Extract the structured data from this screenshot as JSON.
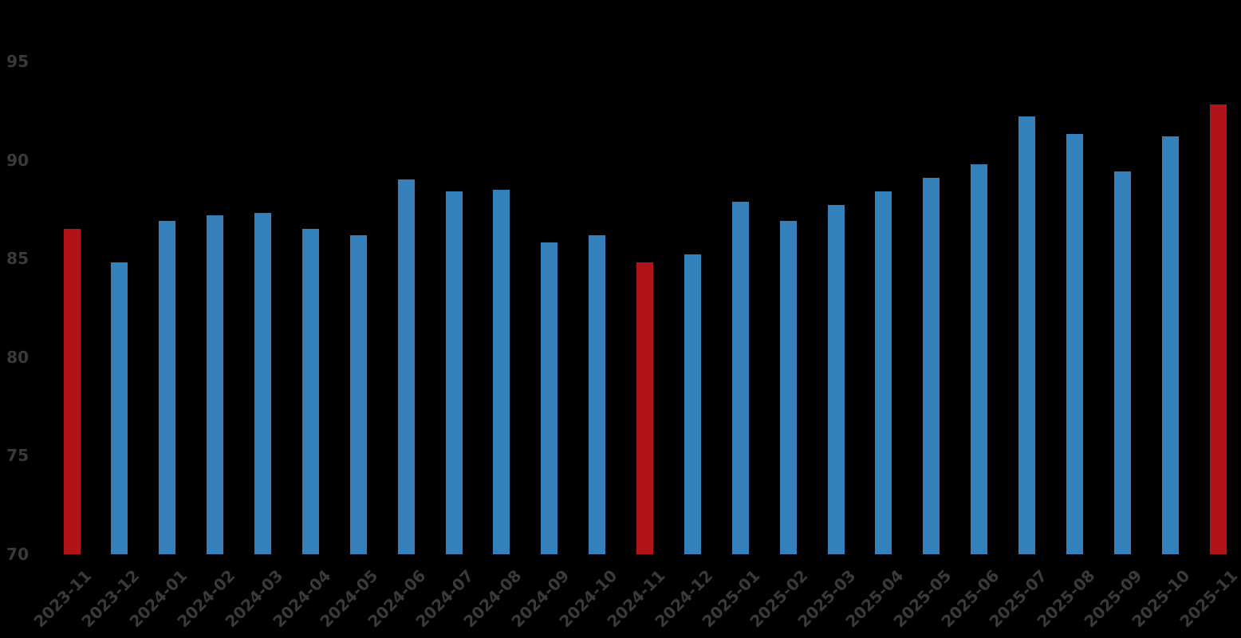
{
  "chart_data": {
    "type": "bar",
    "title": "",
    "categories": [
      "2023-11",
      "2023-12",
      "2024-01",
      "2024-02",
      "2024-03",
      "2024-04",
      "2024-05",
      "2024-06",
      "2024-07",
      "2024-08",
      "2024-09",
      "2024-10",
      "2024-11",
      "2024-12",
      "2025-01",
      "2025-02",
      "2025-03",
      "2025-04",
      "2025-05",
      "2025-06",
      "2025-07",
      "2025-08",
      "2025-09",
      "2025-10",
      "2025-11"
    ],
    "values": [
      86.5,
      84.8,
      86.9,
      87.2,
      87.3,
      86.5,
      86.2,
      89.0,
      88.4,
      88.5,
      85.8,
      86.2,
      84.8,
      85.2,
      87.9,
      86.9,
      87.7,
      88.4,
      89.1,
      89.8,
      92.2,
      91.3,
      89.4,
      91.2,
      92.8
    ],
    "highlighted_categories": [
      "2023-11",
      "2024-11",
      "2025-11"
    ],
    "yticks": [
      70,
      75,
      80,
      85,
      90,
      95
    ],
    "ylim": [
      70,
      96
    ],
    "grid": false,
    "legend": null,
    "colors": {
      "bar": "#3380BA",
      "highlight": "#B01418",
      "tick_text": "#3A3A3A",
      "background": "#000000"
    }
  }
}
